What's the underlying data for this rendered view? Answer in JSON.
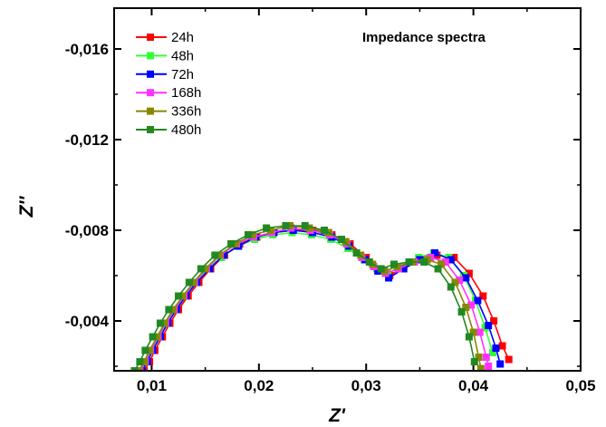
{
  "chart_data": {
    "type": "line",
    "annotation": "Impedance spectra",
    "xlabel": "Z'",
    "ylabel": "Z''",
    "xlim": [
      0.0065,
      0.05
    ],
    "ylim": [
      -0.0018,
      -0.0178
    ],
    "xticks": [
      {
        "v": 0.01,
        "label": "0,01"
      },
      {
        "v": 0.02,
        "label": "0,02"
      },
      {
        "v": 0.03,
        "label": "0,03"
      },
      {
        "v": 0.04,
        "label": "0,04"
      },
      {
        "v": 0.05,
        "label": "0,05"
      }
    ],
    "yticks": [
      {
        "v": -0.004,
        "label": "-0,004"
      },
      {
        "v": -0.008,
        "label": "-0,008"
      },
      {
        "v": -0.012,
        "label": "-0,012"
      },
      {
        "v": -0.016,
        "label": "-0,016"
      }
    ],
    "legend_position": "top-left",
    "grid": false,
    "series": [
      {
        "name": "24h",
        "color": "#ff0000",
        "points": [
          [
            0.0093,
            -0.0018
          ],
          [
            0.0098,
            -0.0022
          ],
          [
            0.0103,
            -0.0027
          ],
          [
            0.011,
            -0.0033
          ],
          [
            0.0117,
            -0.0039
          ],
          [
            0.0125,
            -0.0045
          ],
          [
            0.0134,
            -0.0051
          ],
          [
            0.0144,
            -0.0057
          ],
          [
            0.0155,
            -0.0063
          ],
          [
            0.0168,
            -0.0069
          ],
          [
            0.0182,
            -0.0074
          ],
          [
            0.0198,
            -0.0077
          ],
          [
            0.0214,
            -0.0079
          ],
          [
            0.0232,
            -0.008
          ],
          [
            0.025,
            -0.008
          ],
          [
            0.0268,
            -0.0078
          ],
          [
            0.0285,
            -0.0074
          ],
          [
            0.03,
            -0.0068
          ],
          [
            0.0312,
            -0.0063
          ],
          [
            0.0322,
            -0.006
          ],
          [
            0.0335,
            -0.0064
          ],
          [
            0.035,
            -0.0067
          ],
          [
            0.0366,
            -0.0069
          ],
          [
            0.0382,
            -0.0068
          ],
          [
            0.0396,
            -0.0061
          ],
          [
            0.0409,
            -0.0051
          ],
          [
            0.0419,
            -0.004
          ],
          [
            0.0427,
            -0.0029
          ],
          [
            0.0433,
            -0.0023
          ]
        ]
      },
      {
        "name": "48h",
        "color": "#33ff33",
        "points": [
          [
            0.009,
            -0.0018
          ],
          [
            0.0095,
            -0.0022
          ],
          [
            0.01,
            -0.0027
          ],
          [
            0.0107,
            -0.0033
          ],
          [
            0.0114,
            -0.0039
          ],
          [
            0.0122,
            -0.0045
          ],
          [
            0.0131,
            -0.0051
          ],
          [
            0.0141,
            -0.0057
          ],
          [
            0.0152,
            -0.0063
          ],
          [
            0.0165,
            -0.0068
          ],
          [
            0.018,
            -0.0073
          ],
          [
            0.0196,
            -0.0076
          ],
          [
            0.0213,
            -0.0078
          ],
          [
            0.0231,
            -0.0079
          ],
          [
            0.0249,
            -0.0078
          ],
          [
            0.0267,
            -0.0076
          ],
          [
            0.0283,
            -0.0072
          ],
          [
            0.0298,
            -0.0067
          ],
          [
            0.031,
            -0.0063
          ],
          [
            0.032,
            -0.0061
          ],
          [
            0.0334,
            -0.0064
          ],
          [
            0.0349,
            -0.0068
          ],
          [
            0.0363,
            -0.007
          ],
          [
            0.0377,
            -0.0068
          ],
          [
            0.0391,
            -0.006
          ],
          [
            0.0402,
            -0.0049
          ],
          [
            0.0411,
            -0.0037
          ],
          [
            0.0418,
            -0.0026
          ]
        ]
      },
      {
        "name": "72h",
        "color": "#0000ff",
        "points": [
          [
            0.0091,
            -0.0018
          ],
          [
            0.0096,
            -0.0022
          ],
          [
            0.0101,
            -0.0027
          ],
          [
            0.0108,
            -0.0033
          ],
          [
            0.0115,
            -0.0039
          ],
          [
            0.0123,
            -0.0045
          ],
          [
            0.0132,
            -0.0051
          ],
          [
            0.0142,
            -0.0057
          ],
          [
            0.0154,
            -0.0063
          ],
          [
            0.0167,
            -0.0069
          ],
          [
            0.0181,
            -0.0073
          ],
          [
            0.0197,
            -0.0077
          ],
          [
            0.0214,
            -0.0079
          ],
          [
            0.0232,
            -0.008
          ],
          [
            0.025,
            -0.0079
          ],
          [
            0.0268,
            -0.0077
          ],
          [
            0.0284,
            -0.0073
          ],
          [
            0.0299,
            -0.0067
          ],
          [
            0.0311,
            -0.0062
          ],
          [
            0.0321,
            -0.0059
          ],
          [
            0.0335,
            -0.0063
          ],
          [
            0.035,
            -0.0067
          ],
          [
            0.0364,
            -0.007
          ],
          [
            0.0379,
            -0.0067
          ],
          [
            0.0393,
            -0.0059
          ],
          [
            0.0404,
            -0.0049
          ],
          [
            0.0414,
            -0.0038
          ],
          [
            0.0421,
            -0.0028
          ],
          [
            0.0425,
            -0.0021
          ]
        ]
      },
      {
        "name": "168h",
        "color": "#ff33ff",
        "points": [
          [
            0.0089,
            -0.0018
          ],
          [
            0.0094,
            -0.0022
          ],
          [
            0.0099,
            -0.0027
          ],
          [
            0.0106,
            -0.0033
          ],
          [
            0.0113,
            -0.0039
          ],
          [
            0.0121,
            -0.0045
          ],
          [
            0.013,
            -0.0051
          ],
          [
            0.014,
            -0.0057
          ],
          [
            0.0151,
            -0.0063
          ],
          [
            0.0164,
            -0.0069
          ],
          [
            0.0179,
            -0.0074
          ],
          [
            0.0195,
            -0.0077
          ],
          [
            0.0212,
            -0.0079
          ],
          [
            0.023,
            -0.0081
          ],
          [
            0.0248,
            -0.008
          ],
          [
            0.0266,
            -0.0078
          ],
          [
            0.0282,
            -0.0074
          ],
          [
            0.0296,
            -0.0068
          ],
          [
            0.0307,
            -0.0064
          ],
          [
            0.0318,
            -0.0061
          ],
          [
            0.033,
            -0.0063
          ],
          [
            0.0345,
            -0.0066
          ],
          [
            0.036,
            -0.0068
          ],
          [
            0.0374,
            -0.0066
          ],
          [
            0.0387,
            -0.0058
          ],
          [
            0.0398,
            -0.0047
          ],
          [
            0.0406,
            -0.0035
          ],
          [
            0.0412,
            -0.0024
          ],
          [
            0.0414,
            -0.002
          ]
        ]
      },
      {
        "name": "336h",
        "color": "#888800",
        "points": [
          [
            0.0088,
            -0.0018
          ],
          [
            0.0093,
            -0.0022
          ],
          [
            0.0098,
            -0.0027
          ],
          [
            0.0105,
            -0.0033
          ],
          [
            0.0112,
            -0.0039
          ],
          [
            0.012,
            -0.0045
          ],
          [
            0.0129,
            -0.0051
          ],
          [
            0.0139,
            -0.0057
          ],
          [
            0.015,
            -0.0063
          ],
          [
            0.0163,
            -0.0069
          ],
          [
            0.0178,
            -0.0074
          ],
          [
            0.0194,
            -0.0078
          ],
          [
            0.0211,
            -0.008
          ],
          [
            0.0229,
            -0.0082
          ],
          [
            0.0247,
            -0.0081
          ],
          [
            0.0265,
            -0.0079
          ],
          [
            0.0281,
            -0.0075
          ],
          [
            0.0295,
            -0.0069
          ],
          [
            0.0306,
            -0.0065
          ],
          [
            0.0317,
            -0.0062
          ],
          [
            0.0329,
            -0.0064
          ],
          [
            0.0343,
            -0.0066
          ],
          [
            0.0357,
            -0.0067
          ],
          [
            0.037,
            -0.0065
          ],
          [
            0.0383,
            -0.0057
          ],
          [
            0.0393,
            -0.0046
          ],
          [
            0.04,
            -0.0035
          ],
          [
            0.0405,
            -0.0024
          ],
          [
            0.0407,
            -0.0019
          ]
        ]
      },
      {
        "name": "480h",
        "color": "#228822",
        "points": [
          [
            0.0084,
            -0.0018
          ],
          [
            0.0089,
            -0.0022
          ],
          [
            0.0094,
            -0.0027
          ],
          [
            0.0101,
            -0.0033
          ],
          [
            0.0108,
            -0.0039
          ],
          [
            0.0116,
            -0.0045
          ],
          [
            0.0125,
            -0.0051
          ],
          [
            0.0135,
            -0.0057
          ],
          [
            0.0146,
            -0.0063
          ],
          [
            0.0159,
            -0.0069
          ],
          [
            0.0174,
            -0.0074
          ],
          [
            0.019,
            -0.0078
          ],
          [
            0.0207,
            -0.0081
          ],
          [
            0.0225,
            -0.0082
          ],
          [
            0.0243,
            -0.0082
          ],
          [
            0.0261,
            -0.008
          ],
          [
            0.0277,
            -0.0076
          ],
          [
            0.0291,
            -0.007
          ],
          [
            0.0303,
            -0.0066
          ],
          [
            0.0314,
            -0.0063
          ],
          [
            0.0326,
            -0.0065
          ],
          [
            0.034,
            -0.0066
          ],
          [
            0.0354,
            -0.0066
          ],
          [
            0.0367,
            -0.0063
          ],
          [
            0.0379,
            -0.0055
          ],
          [
            0.0389,
            -0.0044
          ],
          [
            0.0396,
            -0.0033
          ],
          [
            0.0401,
            -0.0022
          ]
        ]
      }
    ]
  }
}
